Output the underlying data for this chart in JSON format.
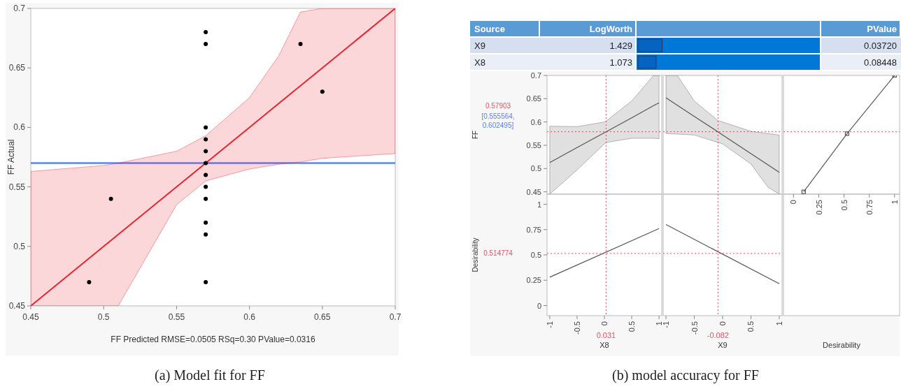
{
  "chart_data": [
    {
      "type": "scatter",
      "xlabel": "FF Predicted RMSE=0.0505 RSq=0.30 PValue=0.0316",
      "ylabel": "FF Actual",
      "xlim": [
        0.45,
        0.7
      ],
      "ylim": [
        0.45,
        0.7
      ],
      "xticks": [
        0.45,
        0.5,
        0.55,
        0.6,
        0.65,
        0.7
      ],
      "yticks": [
        0.45,
        0.5,
        0.55,
        0.6,
        0.65,
        0.7
      ],
      "series": [
        {
          "type": "scatter",
          "marker": "circle",
          "color": "#000000",
          "x": [
            0.57,
            0.57,
            0.57,
            0.57,
            0.57,
            0.57,
            0.57,
            0.57,
            0.57,
            0.57,
            0.57,
            0.57,
            0.505,
            0.49,
            0.635,
            0.65
          ],
          "values": [
            0.68,
            0.67,
            0.6,
            0.59,
            0.58,
            0.57,
            0.56,
            0.55,
            0.54,
            0.52,
            0.51,
            0.47,
            0.54,
            0.47,
            0.67,
            0.63
          ]
        },
        {
          "type": "line",
          "color": "#e8242e",
          "x": [
            0.45,
            0.5,
            0.51,
            0.55,
            0.57,
            0.6,
            0.62,
            0.635,
            0.65,
            0.7
          ],
          "values": [
            0.45,
            0.5,
            0.51,
            0.55,
            0.57,
            0.6,
            0.62,
            0.635,
            0.65,
            0.7
          ],
          "lower": [
            0.45,
            0.45,
            0.45,
            0.535,
            0.555,
            0.565,
            0.569,
            0.571,
            0.574,
            0.578
          ],
          "upper": [
            0.563,
            0.568,
            0.57,
            0.58,
            0.593,
            0.625,
            0.66,
            0.697,
            0.7,
            0.7
          ]
        }
      ],
      "ref_lines": [
        {
          "axis": "y",
          "value": 0.57,
          "color": "#5b84f0"
        }
      ],
      "annotations": [
        "(a) Model fit for FF"
      ]
    },
    {
      "type": "bar",
      "orientation": "horizontal",
      "ylabel": "Source",
      "xlabel": "LogWorth",
      "categories": [
        "X9",
        "X8"
      ],
      "values": [
        1.429,
        1.073
      ],
      "color": "#0563c1",
      "data_labels": true,
      "annotations": [
        "PValue",
        "0.03720",
        "0.08448"
      ]
    },
    {
      "type": "line",
      "ylabel": "FF",
      "xlim": [
        -1.05,
        1.05
      ],
      "ylim": [
        0.445,
        0.7
      ],
      "yticks": [
        0.45,
        0.5,
        0.55,
        0.6,
        0.65,
        0.7
      ],
      "tick_labels": "y",
      "series": [
        {
          "type": "line",
          "color": "#555555",
          "x": [
            -1,
            -0.5,
            0,
            0.031,
            0.5,
            0.9,
            1
          ],
          "values": [
            0.513,
            0.545,
            0.577,
            0.579,
            0.609,
            0.635,
            0.641
          ],
          "lower": [
            0.445,
            0.497,
            0.553,
            0.556,
            0.565,
            0.565,
            0.564
          ],
          "upper": [
            0.591,
            0.59,
            0.6,
            0.602,
            0.645,
            0.7,
            0.7
          ]
        }
      ],
      "ref_lines": [
        {
          "axis": "x",
          "value": 0.031,
          "color": "#e8535f",
          "line_style": "dotted"
        },
        {
          "axis": "y",
          "value": 0.57903,
          "color": "#e8535f",
          "line_style": "dotted",
          "label": "0.57903"
        }
      ],
      "annotations": [
        "[0.555564, 0.602495]"
      ]
    },
    {
      "type": "line",
      "xlim": [
        -1.05,
        1.05
      ],
      "ylim": [
        0.445,
        0.7
      ],
      "tick_labels": false,
      "series": [
        {
          "type": "line",
          "color": "#555555",
          "x": [
            -1,
            -0.8,
            -0.5,
            -0.082,
            0,
            0.5,
            0.8,
            1
          ],
          "values": [
            0.652,
            0.636,
            0.612,
            0.579,
            0.572,
            0.532,
            0.508,
            0.492
          ],
          "lower": [
            0.575,
            0.574,
            0.572,
            0.556,
            0.553,
            0.51,
            0.46,
            0.445
          ],
          "upper": [
            0.7,
            0.7,
            0.645,
            0.603,
            0.6,
            0.58,
            0.575,
            0.572
          ]
        }
      ],
      "ref_lines": [
        {
          "axis": "x",
          "value": -0.082,
          "color": "#e8535f",
          "line_style": "dotted"
        },
        {
          "axis": "y",
          "value": 0.57903,
          "color": "#e8535f",
          "line_style": "dotted"
        }
      ]
    },
    {
      "type": "line",
      "xlabel": "Desirability",
      "xlim": [
        -0.1,
        1.05
      ],
      "ylim": [
        0.445,
        0.7
      ],
      "xticks": [
        0,
        0.25,
        0.5,
        0.75,
        1
      ],
      "tick_labels": "x",
      "series": [
        {
          "type": "line",
          "marker": "square",
          "color": "#555555",
          "x": [
            0.1,
            0.53,
            1
          ],
          "values": [
            0.45,
            0.575,
            0.7
          ]
        }
      ],
      "ref_lines": [
        {
          "axis": "y",
          "value": 0.57903,
          "color": "#e8535f",
          "line_style": "dotted"
        }
      ]
    },
    {
      "type": "line",
      "xlabel": "X8",
      "ylabel": "Desirability",
      "xlim": [
        -1.05,
        1.05
      ],
      "ylim": [
        -0.1,
        1.1
      ],
      "xticks": [
        -1,
        -0.5,
        0,
        0.5,
        1
      ],
      "yticks": [
        0,
        0.25,
        0.5,
        0.75,
        1
      ],
      "series": [
        {
          "type": "line",
          "color": "#555555",
          "x": [
            -1,
            1
          ],
          "values": [
            0.28,
            0.76
          ]
        }
      ],
      "ref_lines": [
        {
          "axis": "x",
          "value": 0.031,
          "color": "#e8535f",
          "line_style": "dotted",
          "label": "0.031"
        },
        {
          "axis": "y",
          "value": 0.514774,
          "color": "#e8535f",
          "line_style": "dotted",
          "label": "0.514774"
        }
      ]
    },
    {
      "type": "line",
      "xlabel": "X9",
      "xlim": [
        -1.05,
        1.05
      ],
      "ylim": [
        -0.1,
        1.1
      ],
      "xticks": [
        -1,
        -0.5,
        0,
        0.5,
        1
      ],
      "tick_labels": "x",
      "series": [
        {
          "type": "line",
          "color": "#555555",
          "x": [
            -1,
            1
          ],
          "values": [
            0.8,
            0.215
          ]
        }
      ],
      "ref_lines": [
        {
          "axis": "x",
          "value": -0.082,
          "color": "#e8535f",
          "line_style": "dotted",
          "label": "-0.082"
        },
        {
          "axis": "y",
          "value": 0.514774,
          "color": "#e8535f",
          "line_style": "dotted"
        }
      ],
      "annotations": [
        "(b) model accuracy for FF"
      ]
    }
  ]
}
